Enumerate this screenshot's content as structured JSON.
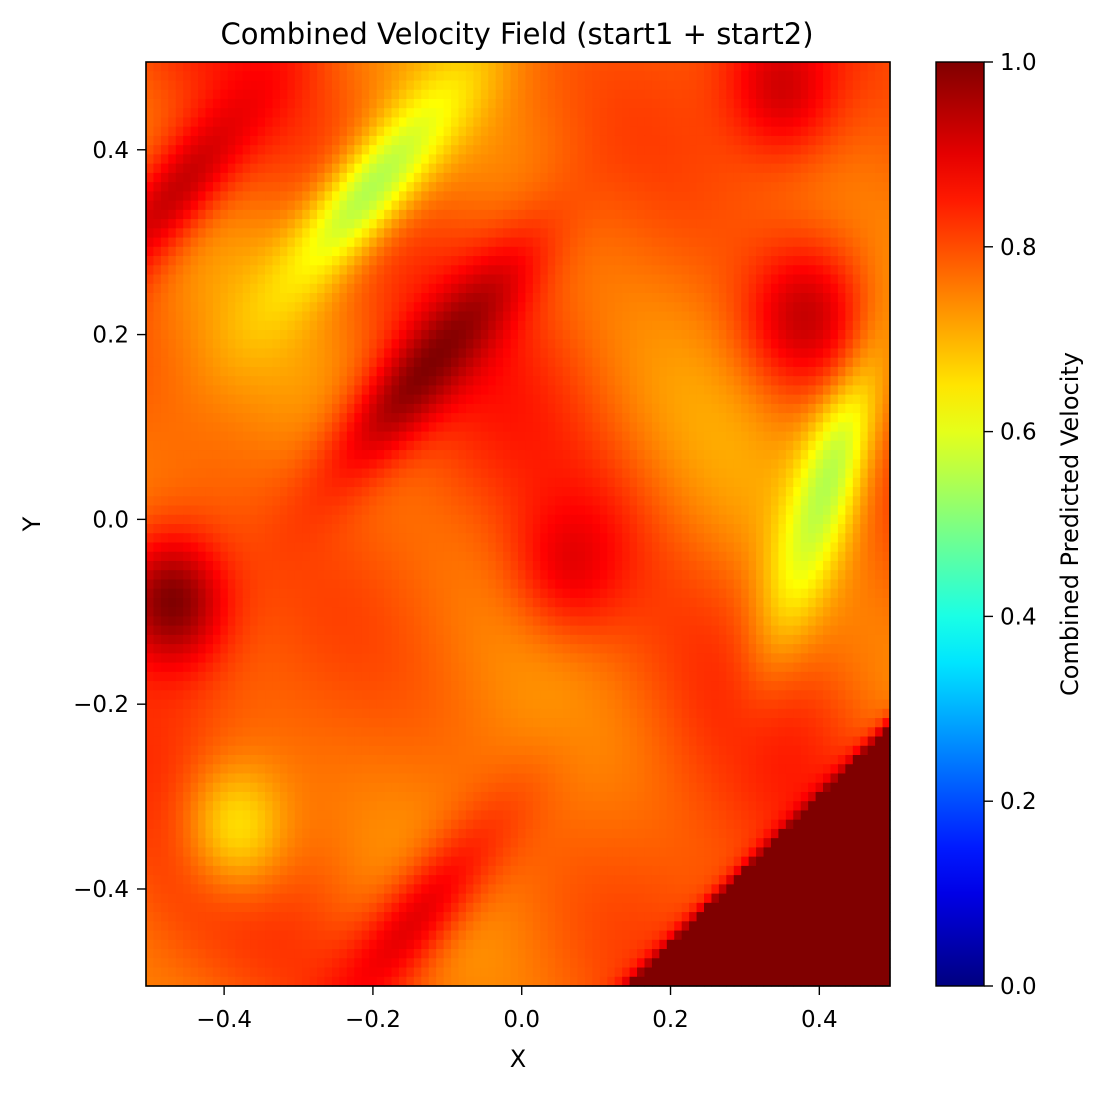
{
  "chart_data": {
    "type": "heatmap",
    "title": "Combined Velocity Field (start1 + start2)",
    "xlabel": "X",
    "ylabel": "Y",
    "xlim": [
      -0.505,
      0.495
    ],
    "ylim": [
      -0.505,
      0.495
    ],
    "xticks": [
      -0.4,
      -0.2,
      0.0,
      0.2,
      0.4
    ],
    "yticks": [
      -0.4,
      -0.2,
      0.0,
      0.2,
      0.4
    ],
    "xtick_labels": [
      "−0.4",
      "−0.2",
      "0.0",
      "0.2",
      "0.4"
    ],
    "ytick_labels": [
      "−0.4",
      "−0.2",
      "0.0",
      "0.2",
      "0.4"
    ],
    "colormap": "jet",
    "colorbar": {
      "label": "Combined Predicted Velocity",
      "range": [
        0.0,
        1.0
      ],
      "ticks": [
        0.0,
        0.2,
        0.4,
        0.6,
        0.8,
        1.0
      ],
      "tick_labels": [
        "0.0",
        "0.2",
        "0.4",
        "0.6",
        "0.8",
        "1.0"
      ]
    },
    "grid_resolution": [
      100,
      100
    ],
    "field_features": [
      {
        "x": -0.12,
        "y": 0.17,
        "value": 1.0,
        "desc": "elongated dark red band"
      },
      {
        "x": -0.47,
        "y": -0.09,
        "value": 1.0,
        "desc": "dark red lobe at left edge"
      },
      {
        "x": 0.42,
        "y": -0.38,
        "value": 1.0,
        "desc": "dark red corner region"
      },
      {
        "x": 0.07,
        "y": -0.04,
        "value": 0.9,
        "desc": "red patch center"
      },
      {
        "x": -0.2,
        "y": 0.36,
        "value": 0.55,
        "desc": "green-yellow arc upper"
      },
      {
        "x": 0.41,
        "y": 0.04,
        "value": 0.55,
        "desc": "green-yellow streak right"
      },
      {
        "x": -0.38,
        "y": -0.33,
        "value": 0.66,
        "desc": "yellow patch lower left"
      },
      {
        "x": 0.35,
        "y": 0.47,
        "value": 0.92,
        "desc": "red spot top right"
      },
      {
        "x": 0.38,
        "y": 0.22,
        "value": 0.93,
        "desc": "red spot right"
      },
      {
        "x": -0.46,
        "y": 0.36,
        "value": 0.93,
        "desc": "red band top left"
      },
      {
        "x": -0.15,
        "y": -0.44,
        "value": 0.9,
        "desc": "red band bottom"
      }
    ]
  }
}
